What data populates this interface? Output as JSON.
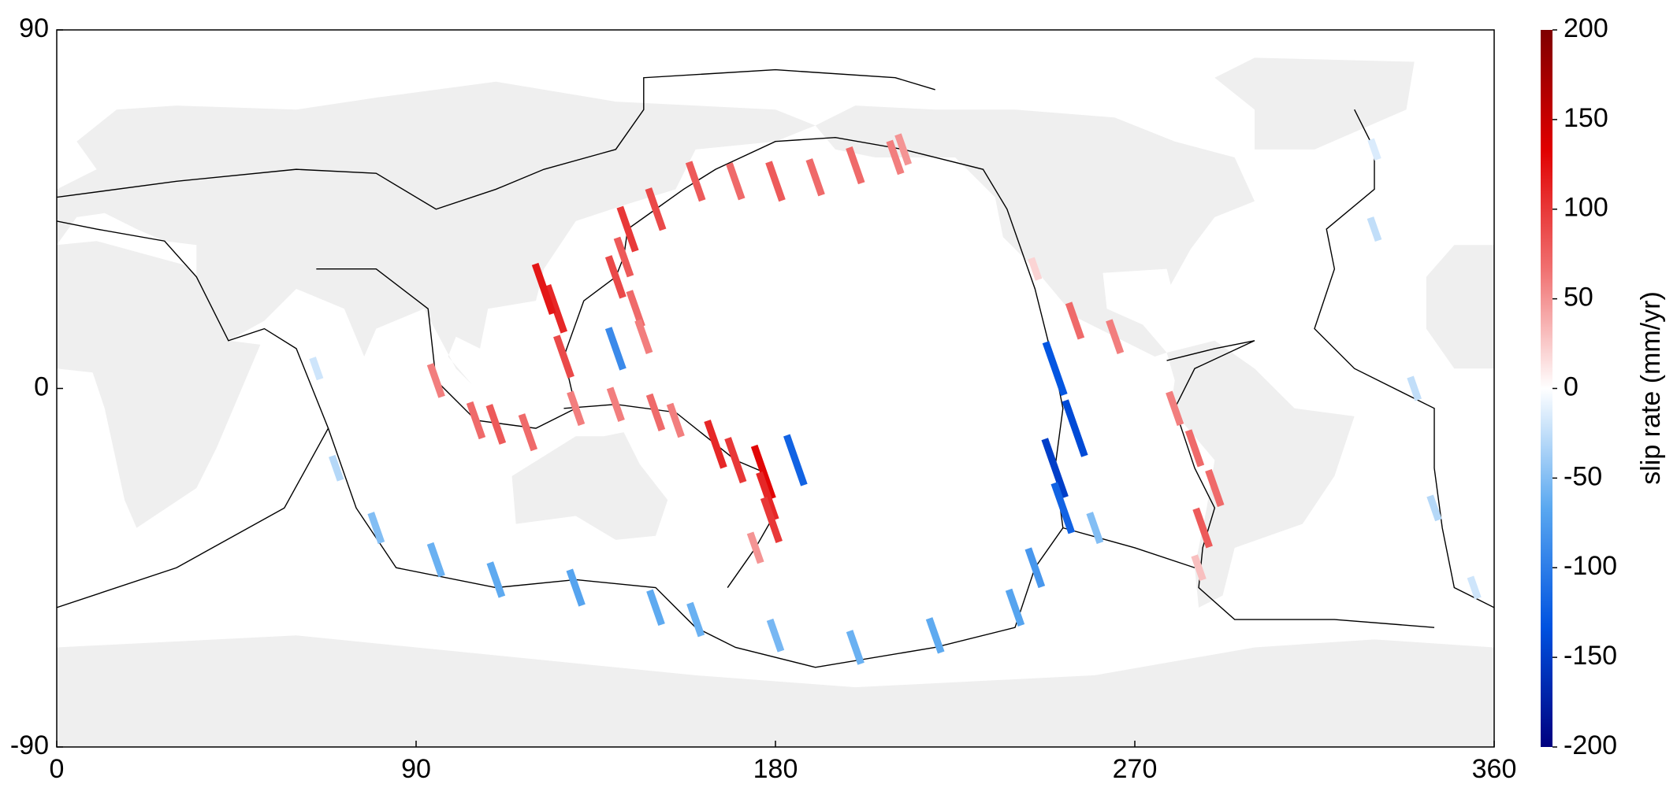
{
  "chart_data": {
    "type": "map",
    "xlim": [
      0,
      360
    ],
    "xticks": [
      0,
      90,
      180,
      270,
      360
    ],
    "ylim": [
      -90,
      90
    ],
    "yticks": [
      -90,
      0,
      90
    ],
    "colorbar_label": "slip rate (mm/yr)",
    "clim": [
      -200,
      200
    ],
    "cticks": [
      -200,
      -150,
      -100,
      -50,
      0,
      50,
      100,
      150,
      200
    ],
    "colormap": [
      "#00007f",
      "#0052e0",
      "#5aa8f0",
      "#ffffff",
      "#f07070",
      "#e00000",
      "#7f0000"
    ],
    "x": [
      160,
      150,
      143,
      142,
      140,
      145,
      147,
      125,
      122,
      127,
      105,
      110,
      118,
      95,
      130,
      140,
      150,
      155,
      165,
      170,
      177,
      178,
      179,
      175,
      170,
      180,
      190,
      200,
      210,
      212,
      245,
      255,
      265,
      280,
      285,
      290,
      287,
      286,
      250,
      255,
      250,
      252,
      245,
      240,
      220,
      200,
      180,
      160,
      150,
      130,
      110,
      95,
      80,
      70,
      65,
      185,
      140,
      330,
      340,
      345,
      330,
      355,
      260
    ],
    "y": [
      52,
      45,
      40,
      33,
      28,
      20,
      13,
      20,
      25,
      8,
      -8,
      -9,
      -11,
      2,
      -5,
      -4,
      -6,
      -8,
      -14,
      -18,
      -21,
      -27,
      -33,
      -40,
      52,
      52,
      53,
      56,
      58,
      60,
      30,
      17,
      13,
      -5,
      -15,
      -25,
      -35,
      -45,
      5,
      -10,
      -20,
      -30,
      -45,
      -55,
      -62,
      -65,
      -62,
      -58,
      -55,
      -50,
      -48,
      -43,
      -35,
      -20,
      5,
      -18,
      10,
      40,
      0,
      -30,
      60,
      -50,
      -35
    ],
    "values": [
      80,
      90,
      100,
      80,
      90,
      70,
      60,
      110,
      120,
      90,
      70,
      80,
      70,
      60,
      60,
      60,
      70,
      60,
      110,
      100,
      130,
      110,
      100,
      50,
      70,
      80,
      70,
      70,
      60,
      50,
      20,
      70,
      60,
      60,
      70,
      70,
      80,
      30,
      -130,
      -140,
      -150,
      -120,
      -80,
      -70,
      -65,
      -60,
      -55,
      -60,
      -65,
      -70,
      -65,
      -60,
      -50,
      -30,
      -20,
      -120,
      -90,
      -25,
      -25,
      -30,
      -15,
      -20,
      -50
    ]
  }
}
